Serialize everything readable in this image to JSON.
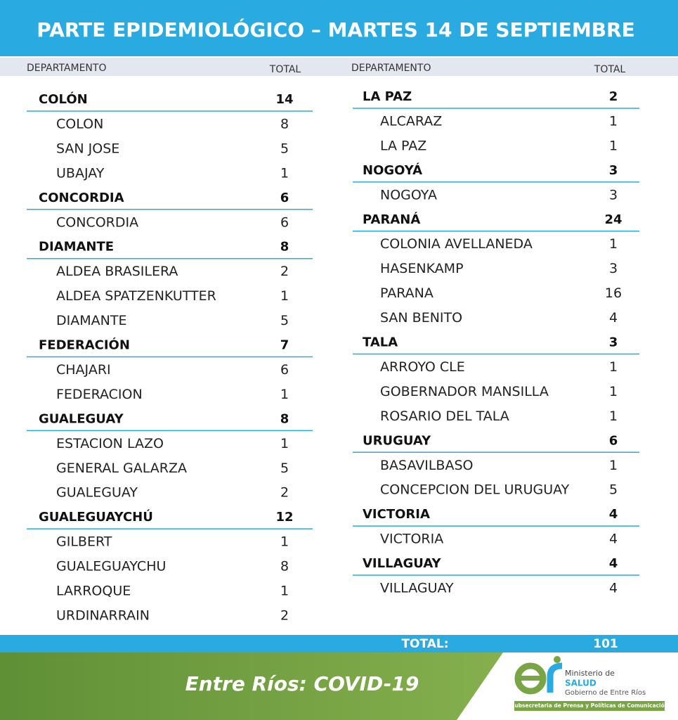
{
  "header": {
    "title": "PARTE EPIDEMIOLÓGICO – MARTES 14 DE SEPTIEMBRE"
  },
  "columns": [
    {
      "heading": {
        "department": "DEPARTAMENTO",
        "total": "TOTAL"
      },
      "departments": [
        {
          "name": "COLÓN",
          "total": 14,
          "localities": [
            {
              "name": "COLON",
              "total": 8
            },
            {
              "name": "SAN JOSE",
              "total": 5
            },
            {
              "name": "UBAJAY",
              "total": 1
            }
          ]
        },
        {
          "name": "CONCORDIA",
          "total": 6,
          "localities": [
            {
              "name": "CONCORDIA",
              "total": 6
            }
          ]
        },
        {
          "name": "DIAMANTE",
          "total": 8,
          "localities": [
            {
              "name": "ALDEA BRASILERA",
              "total": 2
            },
            {
              "name": "ALDEA SPATZENKUTTER",
              "total": 1
            },
            {
              "name": "DIAMANTE",
              "total": 5
            }
          ]
        },
        {
          "name": "FEDERACIÓN",
          "total": 7,
          "localities": [
            {
              "name": "CHAJARI",
              "total": 6
            },
            {
              "name": "FEDERACION",
              "total": 1
            }
          ]
        },
        {
          "name": "GUALEGUAY",
          "total": 8,
          "localities": [
            {
              "name": "ESTACION LAZO",
              "total": 1
            },
            {
              "name": "GENERAL GALARZA",
              "total": 5
            },
            {
              "name": "GUALEGUAY",
              "total": 2
            }
          ]
        },
        {
          "name": "GUALEGUAYCHÚ",
          "total": 12,
          "localities": [
            {
              "name": "GILBERT",
              "total": 1
            },
            {
              "name": "GUALEGUAYCHU",
              "total": 8
            },
            {
              "name": "LARROQUE",
              "total": 1
            },
            {
              "name": "URDINARRAIN",
              "total": 2
            }
          ]
        }
      ]
    },
    {
      "heading": {
        "department": "DEPARTAMENTO",
        "total": "TOTAL"
      },
      "departments": [
        {
          "name": "LA PAZ",
          "total": 2,
          "localities": [
            {
              "name": "ALCARAZ",
              "total": 1
            },
            {
              "name": "LA PAZ",
              "total": 1
            }
          ]
        },
        {
          "name": "NOGOYÁ",
          "total": 3,
          "localities": [
            {
              "name": "NOGOYA",
              "total": 3
            }
          ]
        },
        {
          "name": "PARANÁ",
          "total": 24,
          "localities": [
            {
              "name": "COLONIA AVELLANEDA",
              "total": 1
            },
            {
              "name": "HASENKAMP",
              "total": 3
            },
            {
              "name": "PARANA",
              "total": 16
            },
            {
              "name": "SAN BENITO",
              "total": 4
            }
          ]
        },
        {
          "name": "TALA",
          "total": 3,
          "localities": [
            {
              "name": "ARROYO CLE",
              "total": 1
            },
            {
              "name": "GOBERNADOR MANSILLA",
              "total": 1
            },
            {
              "name": "ROSARIO DEL TALA",
              "total": 1
            }
          ]
        },
        {
          "name": "URUGUAY",
          "total": 6,
          "localities": [
            {
              "name": "BASAVILBASO",
              "total": 1
            },
            {
              "name": "CONCEPCION DEL URUGUAY",
              "total": 5
            }
          ]
        },
        {
          "name": "VICTORIA",
          "total": 4,
          "localities": [
            {
              "name": "VICTORIA",
              "total": 4
            }
          ]
        },
        {
          "name": "VILLAGUAY",
          "total": 4,
          "localities": [
            {
              "name": "VILLAGUAY",
              "total": 4
            }
          ]
        }
      ]
    }
  ],
  "footer": {
    "total_label": "TOTAL:",
    "total": 101,
    "caption": "Entre Ríos: COVID-19",
    "logo": {
      "line1": "Ministerio de",
      "line2": "SALUD",
      "line3": "Gobierno de Entre Ríos",
      "banner": "Subsecretaria de Prensa y Políticas de Comunicación"
    }
  }
}
